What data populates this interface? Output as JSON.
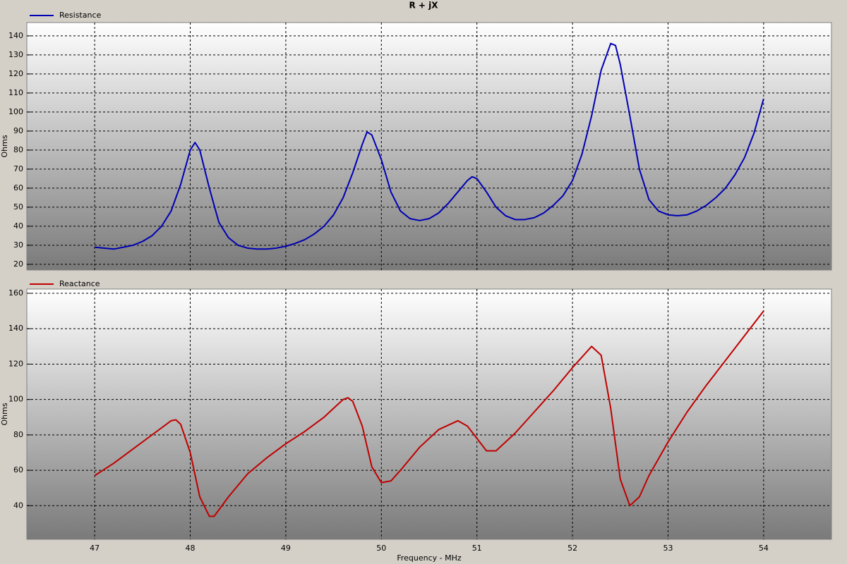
{
  "chart_data": [
    {
      "type": "line",
      "title": "R + jX",
      "ylabel": "Ohms",
      "x": [
        47.0,
        47.1,
        47.2,
        47.3,
        47.4,
        47.5,
        47.6,
        47.7,
        47.8,
        47.9,
        48.0,
        48.05,
        48.1,
        48.2,
        48.3,
        48.4,
        48.5,
        48.6,
        48.7,
        48.8,
        48.9,
        49.0,
        49.1,
        49.2,
        49.3,
        49.4,
        49.5,
        49.6,
        49.7,
        49.8,
        49.85,
        49.9,
        50.0,
        50.1,
        50.2,
        50.3,
        50.4,
        50.5,
        50.6,
        50.7,
        50.8,
        50.9,
        50.95,
        51.0,
        51.1,
        51.2,
        51.3,
        51.4,
        51.5,
        51.6,
        51.7,
        51.8,
        51.9,
        52.0,
        52.1,
        52.2,
        52.3,
        52.4,
        52.45,
        52.5,
        52.6,
        52.7,
        52.8,
        52.9,
        53.0,
        53.1,
        53.2,
        53.3,
        53.4,
        53.5,
        53.6,
        53.7,
        53.8,
        53.9,
        54.0
      ],
      "series": [
        {
          "name": "Resistance",
          "color": "#0000b4",
          "values": [
            29,
            28.5,
            28,
            29,
            30,
            32,
            35,
            40,
            48,
            62,
            80,
            84,
            80,
            60,
            42,
            34,
            30,
            28.5,
            28,
            28,
            28.5,
            29.5,
            31,
            33,
            36,
            40,
            46,
            55,
            68,
            83,
            89.5,
            88,
            75,
            58,
            48,
            44,
            43,
            44,
            47,
            52,
            58,
            64,
            66,
            65,
            58,
            50,
            45.5,
            43.5,
            43.5,
            44.5,
            47,
            51,
            56,
            64,
            78,
            98,
            122,
            136,
            135,
            125,
            98,
            70,
            54,
            48,
            46,
            45.5,
            46,
            48,
            51,
            55,
            60,
            67,
            76,
            89,
            107
          ]
        }
      ],
      "xlim": [
        46.29,
        54.71
      ],
      "xticks": [
        47,
        48,
        49,
        50,
        51,
        52,
        53,
        54
      ],
      "ylim": [
        17,
        147
      ],
      "yticks": [
        20,
        30,
        40,
        50,
        60,
        70,
        80,
        90,
        100,
        110,
        120,
        130,
        140
      ],
      "grid": true
    },
    {
      "type": "line",
      "ylabel": "Ohms",
      "xlabel": "Frequency - MHz",
      "x": [
        47.0,
        47.2,
        47.4,
        47.6,
        47.8,
        47.85,
        47.9,
        48.0,
        48.1,
        48.2,
        48.25,
        48.4,
        48.6,
        48.8,
        49.0,
        49.2,
        49.4,
        49.6,
        49.65,
        49.7,
        49.8,
        49.9,
        50.0,
        50.1,
        50.2,
        50.4,
        50.6,
        50.8,
        50.9,
        51.0,
        51.1,
        51.2,
        51.4,
        51.6,
        51.8,
        52.0,
        52.2,
        52.3,
        52.4,
        52.5,
        52.6,
        52.7,
        52.8,
        53.0,
        53.2,
        53.4,
        53.6,
        53.8,
        54.0
      ],
      "series": [
        {
          "name": "Reactance",
          "color": "#c00000",
          "values": [
            57,
            64,
            72,
            80,
            88,
            88.5,
            86,
            70,
            45,
            34,
            34,
            45,
            58,
            67,
            75,
            82,
            90,
            100,
            101,
            99,
            85,
            62,
            53,
            54,
            60,
            73,
            83,
            88,
            85,
            78,
            71,
            71,
            81,
            93,
            105,
            118,
            130,
            125,
            95,
            55,
            40,
            45,
            57,
            76,
            93,
            108,
            122,
            136,
            150
          ]
        }
      ],
      "xlim": [
        46.29,
        54.71
      ],
      "xticks": [
        47,
        48,
        49,
        50,
        51,
        52,
        53,
        54
      ],
      "ylim": [
        21,
        162.4
      ],
      "yticks": [
        40,
        60,
        80,
        100,
        120,
        140,
        160
      ],
      "grid": true
    }
  ]
}
